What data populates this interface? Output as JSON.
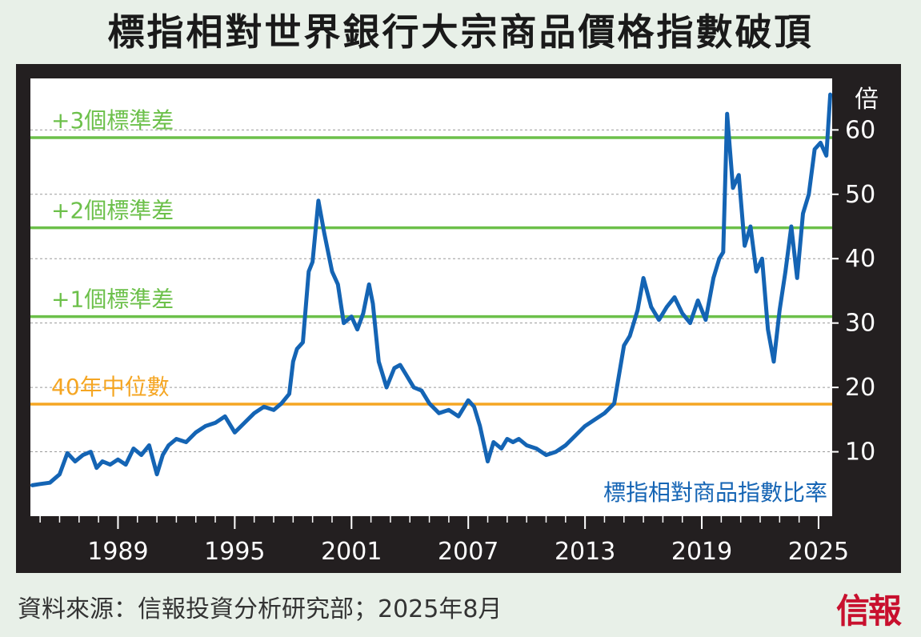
{
  "title": "標指相對世界銀行大宗商品價格指數破頂",
  "source": "資料來源：信報投資分析研究部；2025年8月",
  "logo": "信報",
  "colors": {
    "background": "#e8f0e8",
    "frame": "#231f20",
    "series": "#1464b4",
    "std_lines": "#6cc04a",
    "median_line": "#f5a623"
  },
  "chart_data": {
    "type": "line",
    "title": "標指相對世界銀行大宗商品價格指數破頂",
    "ylabel": "倍",
    "ylim": [
      0,
      68
    ],
    "xlim": [
      1984.5,
      2025.7
    ],
    "yticks": [
      10,
      20,
      30,
      40,
      50,
      60
    ],
    "xticks": [
      "1989",
      "1995",
      "2001",
      "2007",
      "2013",
      "2019",
      "2025"
    ],
    "grid": "horizontal dashed",
    "reference_lines": [
      {
        "label": "+3個標準差",
        "value": 58.8,
        "color": "#6cc04a"
      },
      {
        "label": "+2個標準差",
        "value": 44.8,
        "color": "#6cc04a"
      },
      {
        "label": "+1個標準差",
        "value": 31.0,
        "color": "#6cc04a"
      },
      {
        "label": "40年中位數",
        "value": 17.4,
        "color": "#f5a623"
      }
    ],
    "series": [
      {
        "name": "標指相對商品指數比率",
        "x": [
          1984.6,
          1985.0,
          1985.5,
          1986.0,
          1986.4,
          1986.8,
          1987.2,
          1987.6,
          1987.9,
          1988.2,
          1988.6,
          1989.0,
          1989.4,
          1989.8,
          1990.2,
          1990.6,
          1991.0,
          1991.3,
          1991.6,
          1992.0,
          1992.5,
          1993.0,
          1993.5,
          1994.0,
          1994.5,
          1995.0,
          1995.5,
          1996.0,
          1996.5,
          1997.0,
          1997.4,
          1997.8,
          1998.0,
          1998.2,
          1998.5,
          1998.8,
          1999.0,
          1999.3,
          1999.6,
          2000.0,
          2000.3,
          2000.6,
          2001.0,
          2001.3,
          2001.6,
          2001.9,
          2002.1,
          2002.4,
          2002.8,
          2003.2,
          2003.5,
          2003.8,
          2004.2,
          2004.6,
          2005.0,
          2005.5,
          2006.0,
          2006.5,
          2007.0,
          2007.3,
          2007.6,
          2008.0,
          2008.3,
          2008.7,
          2009.0,
          2009.3,
          2009.6,
          2010.0,
          2010.5,
          2011.0,
          2011.5,
          2012.0,
          2012.5,
          2013.0,
          2013.5,
          2014.0,
          2014.5,
          2015.0,
          2015.3,
          2015.7,
          2016.0,
          2016.4,
          2016.8,
          2017.2,
          2017.6,
          2018.0,
          2018.4,
          2018.8,
          2019.2,
          2019.6,
          2019.9,
          2020.1,
          2020.3,
          2020.6,
          2020.9,
          2021.2,
          2021.5,
          2021.8,
          2022.1,
          2022.4,
          2022.7,
          2023.0,
          2023.3,
          2023.6,
          2023.9,
          2024.2,
          2024.5,
          2024.8,
          2025.1,
          2025.4,
          2025.6
        ],
        "y": [
          4.8,
          5.0,
          5.2,
          6.5,
          9.8,
          8.5,
          9.5,
          10.0,
          7.5,
          8.5,
          8.0,
          8.8,
          8.0,
          10.5,
          9.5,
          11.0,
          6.5,
          9.5,
          11.0,
          12.0,
          11.5,
          13.0,
          14.0,
          14.5,
          15.5,
          13.0,
          14.5,
          16.0,
          17.0,
          16.5,
          17.5,
          19.0,
          24.0,
          26.0,
          27.0,
          38.0,
          39.5,
          49.0,
          44.0,
          38.0,
          36.0,
          30.0,
          31.0,
          29.0,
          31.5,
          36.0,
          33.0,
          24.0,
          20.0,
          23.0,
          23.5,
          22.0,
          20.0,
          19.5,
          17.5,
          16.0,
          16.5,
          15.5,
          18.0,
          17.0,
          14.0,
          8.5,
          11.5,
          10.5,
          12.0,
          11.5,
          12.0,
          11.0,
          10.5,
          9.5,
          10.0,
          11.0,
          12.5,
          14.0,
          15.0,
          16.0,
          17.5,
          26.5,
          28.0,
          32.0,
          37.0,
          32.5,
          30.5,
          32.5,
          34.0,
          31.5,
          30.0,
          33.5,
          30.5,
          37.0,
          40.0,
          41.0,
          62.5,
          51.0,
          53.0,
          42.0,
          45.0,
          38.0,
          40.0,
          29.0,
          24.0,
          32.0,
          38.0,
          45.0,
          37.0,
          47.0,
          50.0,
          57.0,
          58.0,
          56.0,
          65.5
        ]
      }
    ]
  }
}
